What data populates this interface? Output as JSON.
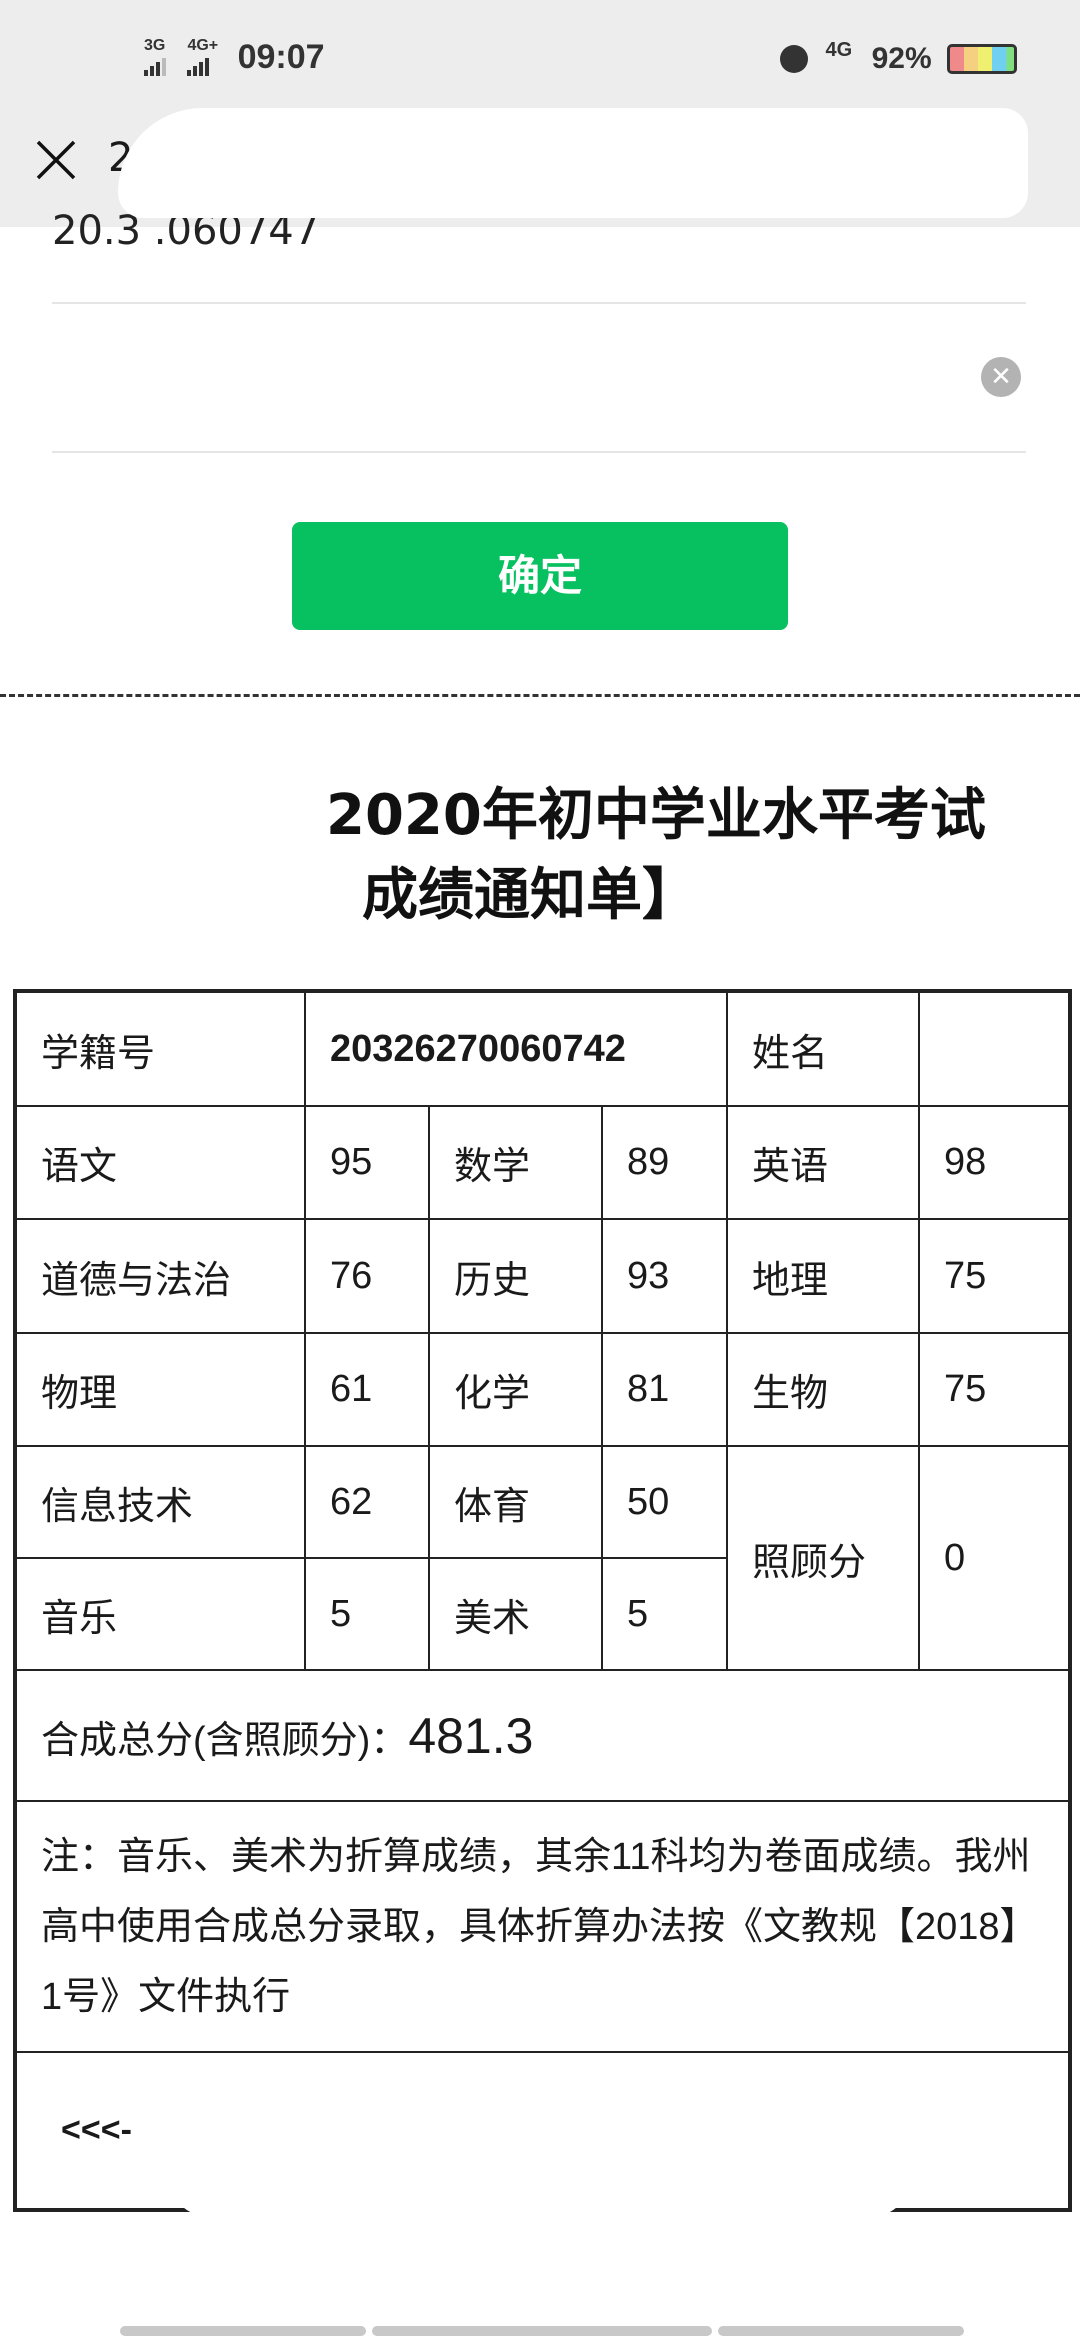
{
  "status_bar": {
    "sim1": "3G",
    "sim2": "4G+",
    "time": "09:07",
    "network": "4G",
    "battery": "92%",
    "battery_colors": [
      "#f08a8a",
      "#f5d080",
      "#f0f070",
      "#70d0f0",
      "#80e080"
    ]
  },
  "header": {
    "title_fragment": "2"
  },
  "form": {
    "field1_fragment": "20.3    .060747",
    "confirm_label": "确定"
  },
  "notice": {
    "title_line1": "2020年初中学业水平考试",
    "title_line2": "成绩通知单】"
  },
  "table": {
    "student_id_label": "学籍号",
    "student_id": "20326270060742",
    "name_label": "姓名",
    "name": "",
    "rows": [
      [
        {
          "s": "语文",
          "v": "95"
        },
        {
          "s": "数学",
          "v": "89"
        },
        {
          "s": "英语",
          "v": "98"
        }
      ],
      [
        {
          "s": "道德与法治",
          "v": "76"
        },
        {
          "s": "历史",
          "v": "93"
        },
        {
          "s": "地理",
          "v": "75"
        }
      ],
      [
        {
          "s": "物理",
          "v": "61"
        },
        {
          "s": "化学",
          "v": "81"
        },
        {
          "s": "生物",
          "v": "75"
        }
      ],
      [
        {
          "s": "信息技术",
          "v": "62"
        },
        {
          "s": "体育",
          "v": "50"
        }
      ],
      [
        {
          "s": "音乐",
          "v": "5"
        },
        {
          "s": "美术",
          "v": "5"
        }
      ]
    ],
    "care_label": "照顾分",
    "care_value": "0",
    "total_label": "合成总分(含照顾分)：",
    "total_value": "481.3",
    "note": "注：音乐、美术为折算成绩，其余11科均为卷面成绩。我州高中使用合成总分录取，具体折算办法按《文教规【2018】1号》文件执行",
    "back_link": "<<<-"
  },
  "colors": {
    "accent": "#07c160",
    "header_bg": "#ededed"
  }
}
